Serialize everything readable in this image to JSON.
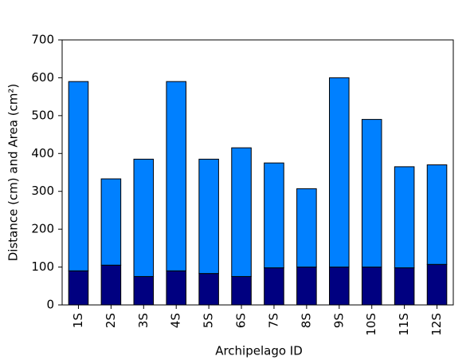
{
  "chart_data": {
    "type": "stacked-bar",
    "x_label": "Archipelago ID",
    "y_label": "Distance (cm) and Area (cm²)",
    "categories": [
      "1S",
      "2S",
      "3S",
      "4S",
      "5S",
      "6S",
      "7S",
      "8S",
      "9S",
      "10S",
      "11S",
      "12S"
    ],
    "series": [
      {
        "color": "#000080",
        "values": [
          90,
          105,
          75,
          90,
          83,
          75,
          98,
          100,
          100,
          100,
          98,
          107
        ]
      },
      {
        "color": "#0080ff",
        "values": [
          500,
          228,
          310,
          500,
          302,
          340,
          277,
          207,
          500,
          390,
          267,
          263
        ]
      }
    ],
    "ylim": [
      0,
      700
    ],
    "yticks": [
      0,
      100,
      200,
      300,
      400,
      500,
      600,
      700
    ]
  }
}
